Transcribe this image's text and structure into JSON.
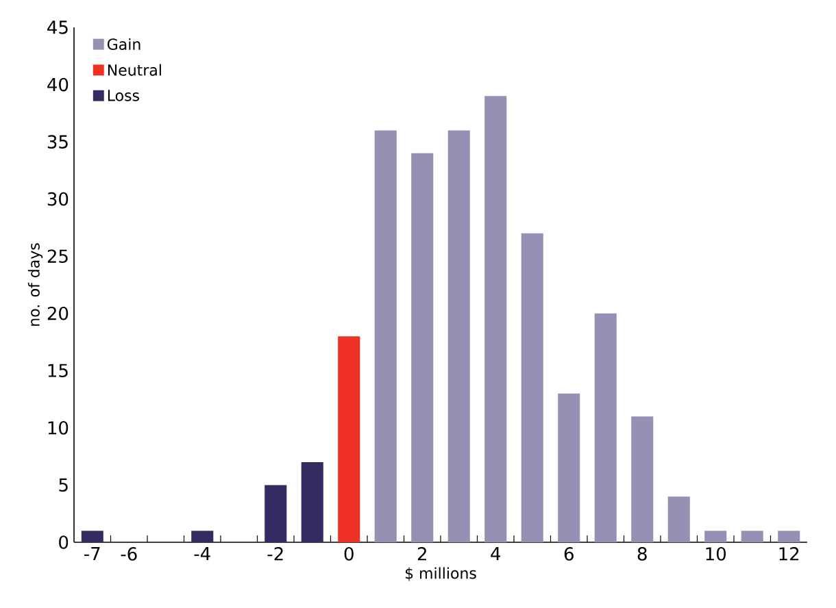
{
  "chart_data": {
    "type": "bar",
    "xlabel": "$ millions",
    "ylabel": "no. of days",
    "series": [
      {
        "name": "Gain",
        "color": "#9590b4",
        "x": [
          1,
          2,
          3,
          4,
          5,
          6,
          7,
          8,
          9,
          10,
          11,
          12
        ],
        "values": [
          36,
          34,
          36,
          39,
          27,
          13,
          20,
          11,
          4,
          1,
          1,
          1
        ]
      },
      {
        "name": "Neutral",
        "color": "#ee3124",
        "x": [
          0
        ],
        "values": [
          18
        ]
      },
      {
        "name": "Loss",
        "color": "#332c62",
        "x": [
          -7,
          -4,
          -2,
          -1
        ],
        "values": [
          1,
          1,
          5,
          7
        ]
      }
    ],
    "xlim": [
      -7.5,
      12.5
    ],
    "xticks": [
      -7,
      -6,
      -4,
      -2,
      0,
      2,
      4,
      6,
      8,
      10,
      12,
      {
        "value": -6.5,
        "label": null
      },
      {
        "value": -5.5,
        "label": null
      },
      {
        "value": -4.5,
        "label": null
      },
      {
        "value": -3.5,
        "label": null
      },
      {
        "value": -2.5,
        "label": null
      },
      {
        "value": -1.5,
        "label": null
      },
      {
        "value": -0.5,
        "label": null
      },
      {
        "value": 0.5,
        "label": null
      },
      {
        "value": 1.5,
        "label": null
      },
      {
        "value": 2.5,
        "label": null
      },
      {
        "value": 3.5,
        "label": null
      },
      {
        "value": 4.5,
        "label": null
      },
      {
        "value": 5.5,
        "label": null
      },
      {
        "value": 6.5,
        "label": null
      },
      {
        "value": 7.5,
        "label": null
      },
      {
        "value": 8.5,
        "label": null
      },
      {
        "value": 9.5,
        "label": null
      },
      {
        "value": 10.5,
        "label": null
      },
      {
        "value": 11.5,
        "label": null
      }
    ],
    "ylim": [
      0,
      45
    ],
    "yticks": [
      0,
      5,
      10,
      15,
      20,
      25,
      30,
      35,
      40,
      45
    ],
    "grid": false,
    "legend": "top left"
  }
}
